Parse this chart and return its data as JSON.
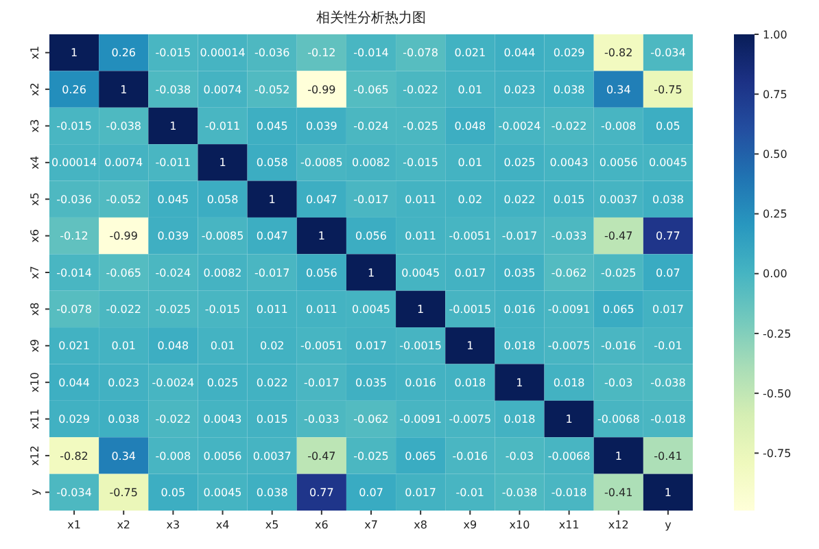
{
  "chart_data": {
    "type": "heatmap",
    "title": "相关性分析热力图",
    "categories": [
      "x1",
      "x2",
      "x3",
      "x4",
      "x5",
      "x6",
      "x7",
      "x8",
      "x9",
      "x10",
      "x11",
      "x12",
      "y"
    ],
    "y_categories": [
      "x1",
      "x2",
      "x3",
      "x4",
      "x5",
      "x6",
      "x7",
      "x8",
      "x9",
      "x10",
      "x11",
      "x12",
      "y"
    ],
    "cells": [
      [
        1,
        0.26,
        -0.015,
        0.00014,
        -0.036,
        -0.12,
        -0.014,
        -0.078,
        0.021,
        0.044,
        0.029,
        -0.82,
        -0.034
      ],
      [
        0.26,
        1,
        -0.038,
        0.0074,
        -0.052,
        -0.99,
        -0.065,
        -0.022,
        0.01,
        0.023,
        0.038,
        0.34,
        -0.75
      ],
      [
        -0.015,
        -0.038,
        1,
        -0.011,
        0.045,
        0.039,
        -0.024,
        -0.025,
        0.048,
        -0.0024,
        -0.022,
        -0.008,
        0.05
      ],
      [
        0.00014,
        0.0074,
        -0.011,
        1,
        0.058,
        -0.0085,
        0.0082,
        -0.015,
        0.01,
        0.025,
        0.0043,
        0.0056,
        0.0045
      ],
      [
        -0.036,
        -0.052,
        0.045,
        0.058,
        1,
        0.047,
        -0.017,
        0.011,
        0.02,
        0.022,
        0.015,
        0.0037,
        0.038
      ],
      [
        -0.12,
        -0.99,
        0.039,
        -0.0085,
        0.047,
        1,
        0.056,
        0.011,
        -0.0051,
        -0.017,
        -0.033,
        -0.47,
        0.77
      ],
      [
        -0.014,
        -0.065,
        -0.024,
        0.0082,
        -0.017,
        0.056,
        1,
        0.0045,
        0.017,
        0.035,
        -0.062,
        -0.025,
        0.07
      ],
      [
        -0.078,
        -0.022,
        -0.025,
        -0.015,
        0.011,
        0.011,
        0.0045,
        1,
        -0.0015,
        0.016,
        -0.0091,
        0.065,
        0.017
      ],
      [
        0.021,
        0.01,
        0.048,
        0.01,
        0.02,
        -0.0051,
        0.017,
        -0.0015,
        1,
        0.018,
        -0.0075,
        -0.016,
        -0.01
      ],
      [
        0.044,
        0.023,
        -0.0024,
        0.025,
        0.022,
        -0.017,
        0.035,
        0.016,
        0.018,
        1,
        0.018,
        -0.03,
        -0.038
      ],
      [
        0.029,
        0.038,
        -0.022,
        0.0043,
        0.015,
        -0.033,
        -0.062,
        -0.0091,
        -0.0075,
        0.018,
        1,
        -0.0068,
        -0.018
      ],
      [
        -0.82,
        0.34,
        -0.008,
        0.0056,
        0.0037,
        -0.47,
        -0.025,
        0.065,
        -0.016,
        -0.03,
        -0.0068,
        1,
        -0.41
      ],
      [
        -0.034,
        -0.75,
        0.05,
        0.0045,
        0.038,
        0.77,
        0.07,
        0.017,
        -0.01,
        -0.038,
        -0.018,
        -0.41,
        1
      ]
    ],
    "data_labels": true,
    "clim": [
      -0.99,
      1
    ],
    "cticks": [
      {
        "value": -0.75,
        "label": "-0.75"
      },
      {
        "value": -0.5,
        "label": "-0.50"
      },
      {
        "value": -0.25,
        "label": "-0.25"
      },
      {
        "value": 0,
        "label": "0.00"
      },
      {
        "value": 0.25,
        "label": "0.25"
      },
      {
        "value": 0.5,
        "label": "0.50"
      },
      {
        "value": 0.75,
        "label": "0.75"
      },
      {
        "value": 1,
        "label": "1.00"
      }
    ]
  }
}
